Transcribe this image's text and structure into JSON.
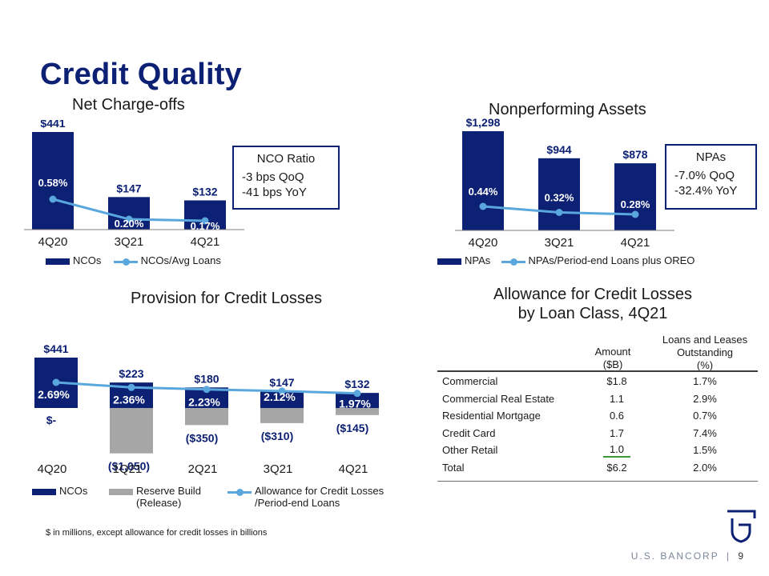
{
  "page": {
    "title": "Credit Quality"
  },
  "nco": {
    "title": "Net Charge-offs",
    "chart_data": {
      "type": "bar",
      "categories": [
        "4Q20",
        "3Q21",
        "4Q21"
      ],
      "series": [
        {
          "name": "NCOs",
          "values": [
            441,
            147,
            132
          ],
          "labels": [
            "$441",
            "$147",
            "$132"
          ]
        },
        {
          "name": "NCOs/Avg Loans",
          "values": [
            0.58,
            0.2,
            0.17
          ],
          "labels": [
            "0.58%",
            "0.20%",
            "0.17%"
          ]
        }
      ]
    },
    "callout": {
      "heading": "NCO Ratio",
      "lines": [
        "-3 bps QoQ",
        "-41 bps YoY"
      ]
    },
    "legend": [
      "NCOs",
      "NCOs/Avg Loans"
    ]
  },
  "npa": {
    "title": "Nonperforming Assets",
    "chart_data": {
      "type": "bar",
      "categories": [
        "4Q20",
        "3Q21",
        "4Q21"
      ],
      "series": [
        {
          "name": "NPAs",
          "values": [
            1298,
            944,
            878
          ],
          "labels": [
            "$1,298",
            "$944",
            "$878"
          ]
        },
        {
          "name": "NPAs/Period-end Loans plus OREO",
          "values": [
            0.44,
            0.32,
            0.28
          ],
          "labels": [
            "0.44%",
            "0.32%",
            "0.28%"
          ]
        }
      ]
    },
    "callout": {
      "heading": "NPAs",
      "lines": [
        "-7.0% QoQ",
        "-32.4% YoY"
      ]
    },
    "legend": [
      "NPAs",
      "NPAs/Period-end Loans plus OREO"
    ]
  },
  "provision": {
    "title": "Provision for Credit Losses",
    "chart_data": {
      "type": "bar",
      "categories": [
        "4Q20",
        "1Q21",
        "2Q21",
        "3Q21",
        "4Q21"
      ],
      "series": [
        {
          "name": "NCOs",
          "values": [
            441,
            223,
            180,
            147,
            132
          ],
          "labels": [
            "$441",
            "$223",
            "$180",
            "$147",
            "$132"
          ]
        },
        {
          "name": "Reserve Build (Release)",
          "values": [
            0,
            -1050,
            -350,
            -310,
            -145
          ],
          "labels": [
            "$-",
            "($1,050)",
            "($350)",
            "($310)",
            "($145)"
          ]
        },
        {
          "name": "Allowance for Credit Losses /Period-end Loans",
          "values": [
            2.69,
            2.36,
            2.23,
            2.12,
            1.97
          ],
          "labels": [
            "2.69%",
            "2.36%",
            "2.23%",
            "2.12%",
            "1.97%"
          ]
        }
      ]
    },
    "legend": [
      {
        "l1": "NCOs",
        "l2": ""
      },
      {
        "l1": "Reserve Build",
        "l2": "(Release)"
      },
      {
        "l1": "Allowance for Credit Losses",
        "l2": "/Period-end Loans"
      }
    ]
  },
  "allowance": {
    "title_line1": "Allowance for Credit Losses",
    "title_line2": "by Loan Class, 4Q21",
    "headers": {
      "amount": [
        "Amount",
        "($B)"
      ],
      "loans": [
        "Loans and Leases",
        "Outstanding",
        "(%)"
      ]
    },
    "rows": [
      {
        "name": "Commercial",
        "amount": "$1.8",
        "pct": "1.7%"
      },
      {
        "name": "Commercial Real Estate",
        "amount": "1.1",
        "pct": "2.9%"
      },
      {
        "name": "Residential Mortgage",
        "amount": "0.6",
        "pct": "0.7%"
      },
      {
        "name": "Credit Card",
        "amount": "1.7",
        "pct": "7.4%"
      },
      {
        "name": "Other Retail",
        "amount": "1.0",
        "pct": "1.5%"
      },
      {
        "name": "Total",
        "amount": "$6.2",
        "pct": "2.0%"
      }
    ]
  },
  "footnote": "$ in millions, except allowance for credit losses in billions",
  "footer": {
    "brand": "U.S. BANCORP",
    "separator": "|",
    "page_number": "9"
  },
  "colors": {
    "navy": "#0c2074",
    "line": "#5aa7dd",
    "grey": "#a6a6a6",
    "underline_green": "#3a9a3a"
  }
}
